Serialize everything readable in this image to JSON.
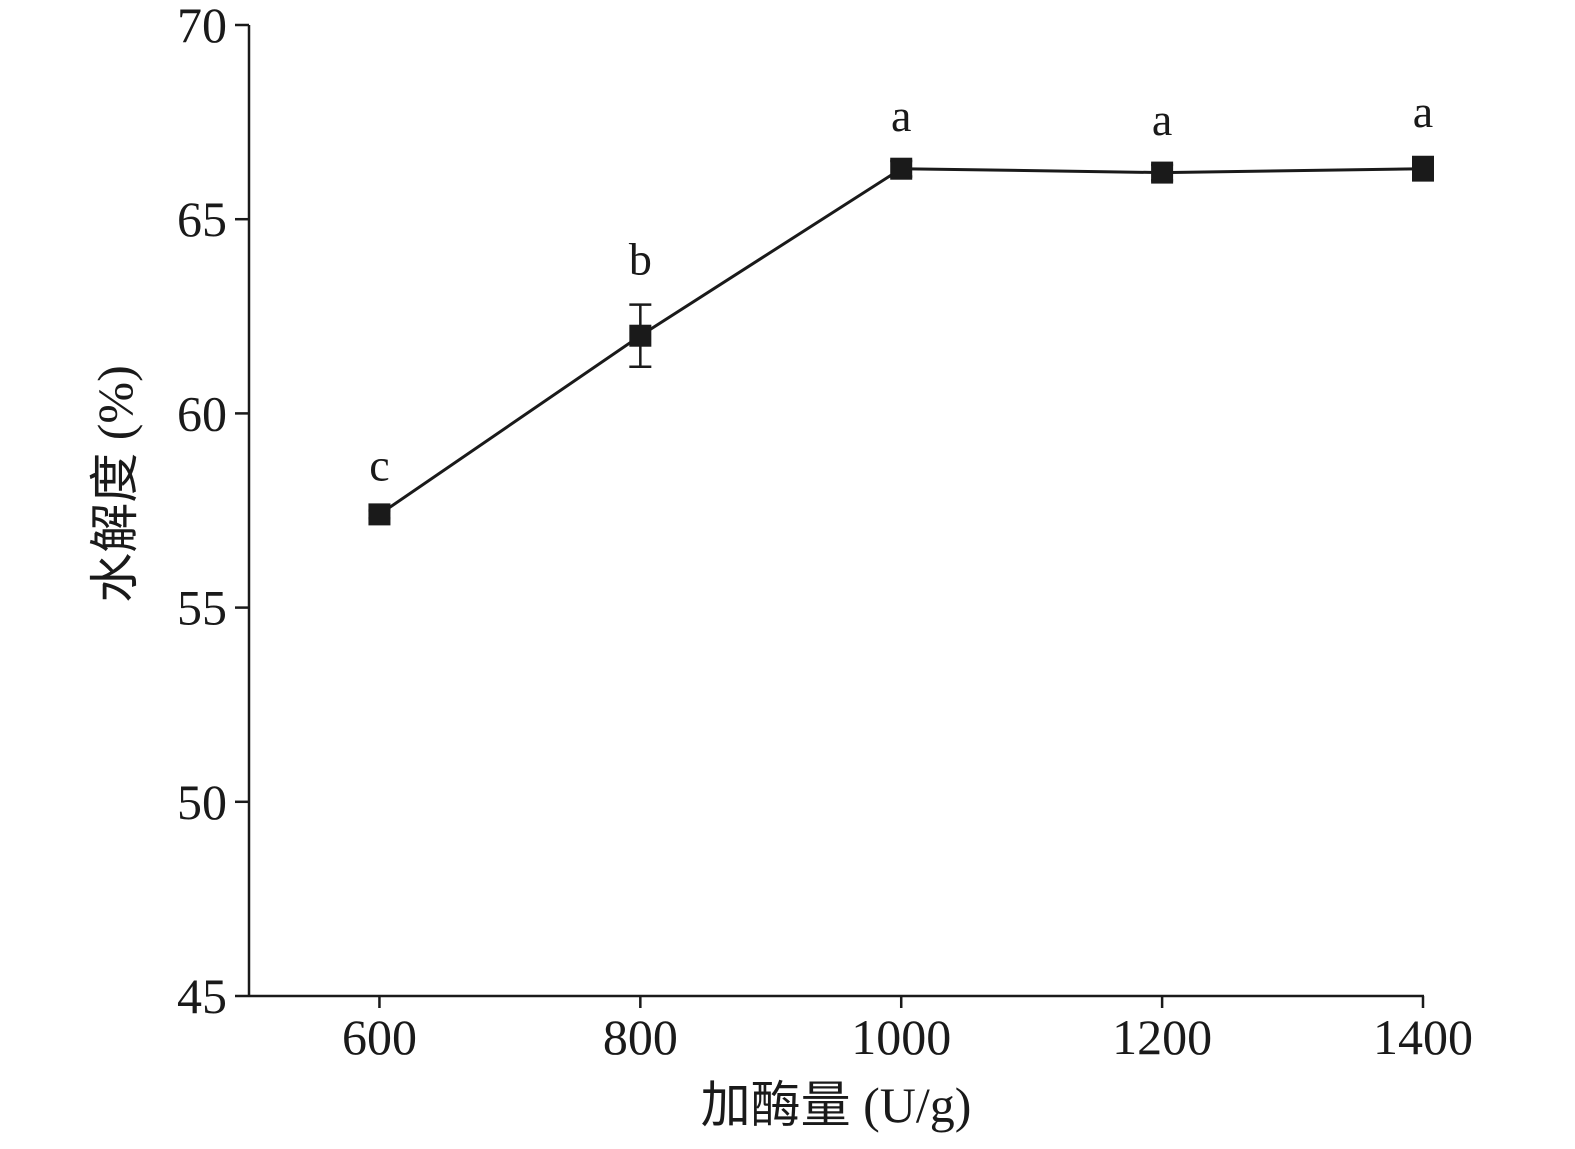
{
  "chart_data": {
    "type": "line",
    "title": "",
    "xlabel": "加酶量 (U/g)",
    "ylabel": "水解度 (%)",
    "x": [
      600,
      800,
      1000,
      1200,
      1400
    ],
    "xticks": [
      "600",
      "800",
      "1000",
      "1200",
      "1400"
    ],
    "xlim": [
      500,
      1400
    ],
    "ylim": [
      45,
      70
    ],
    "yticks": [
      "45",
      "50",
      "55",
      "60",
      "65",
      "70"
    ],
    "grid": false,
    "legend": "none",
    "series": [
      {
        "values": [
          57.4,
          62.0,
          66.3,
          66.2,
          66.3
        ],
        "error": [
          0.1,
          0.8,
          0.2,
          0.2,
          0.3
        ],
        "labels": [
          "c",
          "b",
          "a",
          "a",
          "a"
        ],
        "marker": "square",
        "color": "#1a1a1a"
      }
    ]
  }
}
